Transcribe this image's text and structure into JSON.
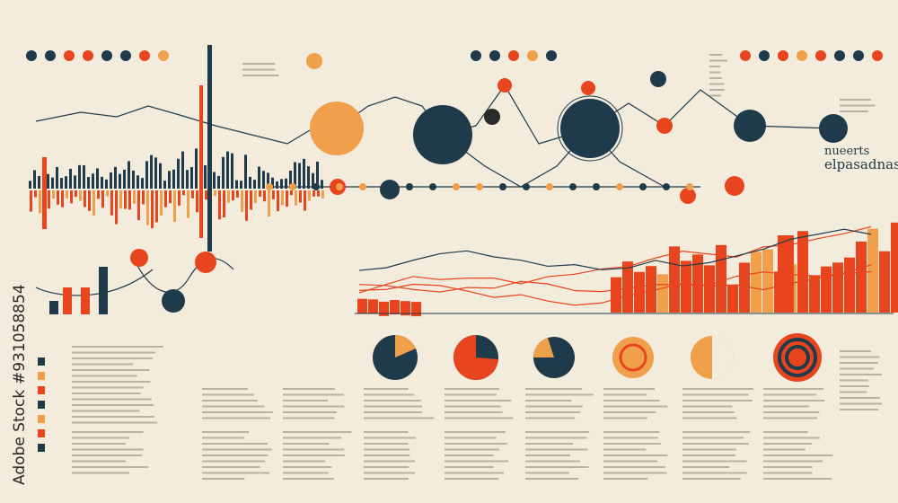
{
  "watermark": {
    "brand": "Adobe Stock",
    "id": "#931058854"
  },
  "side_note": {
    "title": "nueerts",
    "subtitle": "elpasadnass"
  }
}
